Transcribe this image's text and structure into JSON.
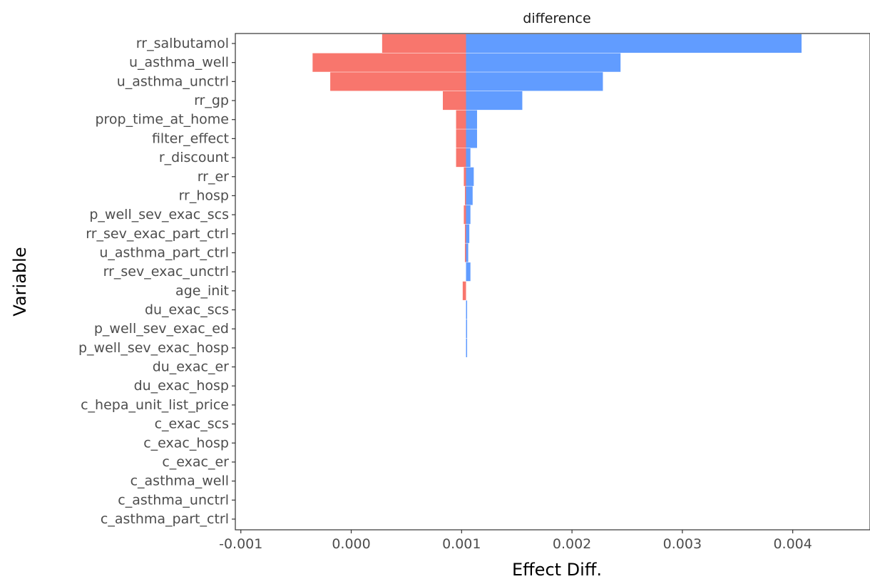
{
  "chart_data": {
    "type": "bar",
    "orientation": "horizontal",
    "facet_title": "difference",
    "xlabel": "Effect Diff.",
    "ylabel": "Variable",
    "xlim": [
      -0.00105,
      0.0047
    ],
    "x_ticks": [
      -0.001,
      0.0,
      0.001,
      0.002,
      0.003,
      0.004
    ],
    "x_tick_labels": [
      "-0.001",
      "0.000",
      "0.001",
      "0.002",
      "0.003",
      "0.004"
    ],
    "baseline": 0.00104,
    "grid": false,
    "legend": "none",
    "colors": {
      "low": "#f8766d",
      "high": "#619cff",
      "axis": "#333333",
      "tick": "#333333"
    },
    "categories": [
      "rr_salbutamol",
      "u_asthma_well",
      "u_asthma_unctrl",
      "rr_gp",
      "prop_time_at_home",
      "filter_effect",
      "r_discount",
      "rr_er",
      "rr_hosp",
      "p_well_sev_exac_scs",
      "rr_sev_exac_part_ctrl",
      "u_asthma_part_ctrl",
      "rr_sev_exac_unctrl",
      "age_init",
      "du_exac_scs",
      "p_well_sev_exac_ed",
      "p_well_sev_exac_hosp",
      "du_exac_er",
      "du_exac_hosp",
      "c_hepa_unit_list_price",
      "c_exac_scs",
      "c_exac_hosp",
      "c_exac_er",
      "c_asthma_well",
      "c_asthma_unctrl",
      "c_asthma_part_ctrl"
    ],
    "series": [
      {
        "values": [
          0.00028,
          -0.00035,
          -0.00019,
          0.00083,
          0.00095,
          0.00095,
          0.00095,
          0.00102,
          0.00103,
          0.00102,
          0.00103,
          0.00103,
          0.00104,
          0.00101,
          0.00104,
          0.00104,
          0.00104,
          0.00104,
          0.00104,
          0.00104,
          0.00104,
          0.00104,
          0.00104,
          0.00104,
          0.00104,
          0.00104
        ]
      },
      {
        "values": [
          0.00408,
          0.00244,
          0.00228,
          0.00155,
          0.00114,
          0.00114,
          0.00108,
          0.00111,
          0.0011,
          0.00108,
          0.00107,
          0.00106,
          0.00108,
          0.00104,
          0.00105,
          0.00105,
          0.00105,
          0.00104,
          0.00104,
          0.00104,
          0.00104,
          0.00104,
          0.00104,
          0.00104,
          0.00104,
          0.00104
        ]
      }
    ]
  }
}
